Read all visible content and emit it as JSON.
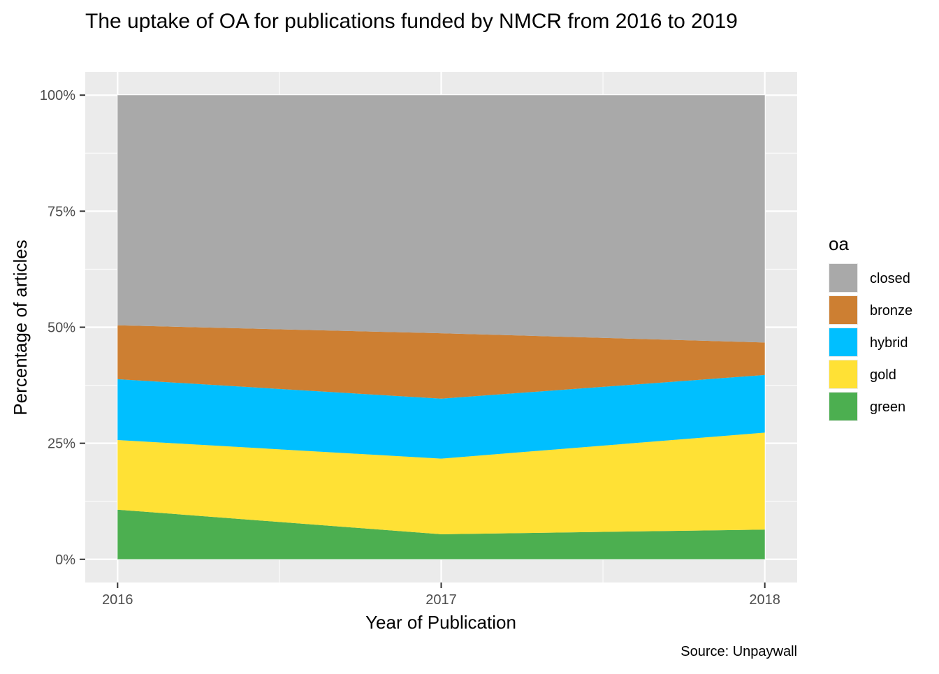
{
  "chart_data": {
    "type": "area",
    "stacked": true,
    "title": "The uptake of OA for publications funded by NMCR from 2016 to 2019",
    "xlabel": "Year of Publication",
    "ylabel": "Percentage of articles",
    "caption": "Source: Unpaywall",
    "x": [
      2016,
      2017,
      2018
    ],
    "x_tick_labels": [
      "2016",
      "2017",
      "2018"
    ],
    "ylim": [
      0,
      1
    ],
    "y_ticks": [
      0,
      0.25,
      0.5,
      0.75,
      1.0
    ],
    "y_tick_labels": [
      "0%",
      "25%",
      "50%",
      "75%",
      "100%"
    ],
    "grid": true,
    "legend": {
      "title": "oa",
      "placement": "right",
      "items": [
        "closed",
        "bronze",
        "hybrid",
        "gold",
        "green"
      ]
    },
    "series": [
      {
        "name": "green",
        "color": "#4CAF50",
        "values": [
          0.107,
          0.054,
          0.064
        ]
      },
      {
        "name": "gold",
        "color": "#FFE135",
        "values": [
          0.15,
          0.163,
          0.209
        ]
      },
      {
        "name": "hybrid",
        "color": "#00BFFF",
        "values": [
          0.131,
          0.129,
          0.124
        ]
      },
      {
        "name": "bronze",
        "color": "#CD7F32",
        "values": [
          0.116,
          0.141,
          0.07
        ]
      },
      {
        "name": "closed",
        "color": "#A9A9A9",
        "values": [
          0.496,
          0.513,
          0.533
        ]
      }
    ]
  }
}
